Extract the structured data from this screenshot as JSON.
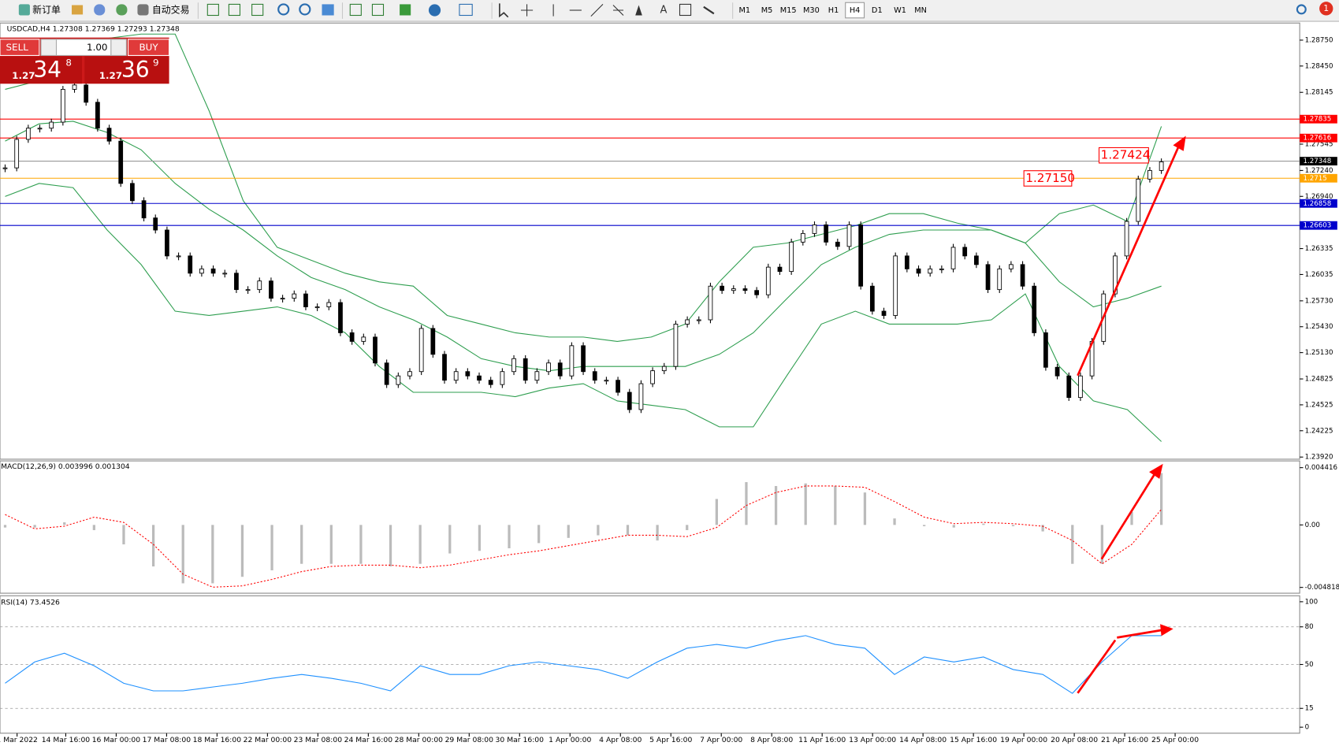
{
  "toolbar": {
    "new_order": "新订单",
    "auto_trading": "自动交易",
    "timeframes": [
      "M1",
      "M5",
      "M15",
      "M30",
      "H1",
      "H4",
      "D1",
      "W1",
      "MN"
    ]
  },
  "notifications": "1",
  "trade_panel": {
    "sell": "SELL",
    "buy": "BUY",
    "lots": "1.00",
    "bid_big": "1.27",
    "bid_pips": "34",
    "bid_point": "8",
    "ask_big": "1.27",
    "ask_pips": "36",
    "ask_point": "9"
  },
  "chart_data": [
    {
      "type": "candlestick",
      "title": "USDCAD,H4  1.27308 1.27369 1.27293 1.27348",
      "values": [
        1.2727,
        1.276,
        1.2773,
        1.2773,
        1.278,
        1.2818,
        1.2823,
        1.2803,
        1.2773,
        1.2758,
        1.2709,
        1.2689,
        1.2669,
        1.2655,
        1.2625,
        1.2625,
        1.2605,
        1.261,
        1.2605,
        1.2605,
        1.2586,
        1.2586,
        1.2596,
        1.2576,
        1.2576,
        1.2581,
        1.2566,
        1.2566,
        1.2571,
        1.2536,
        1.2526,
        1.2531,
        1.2501,
        1.2476,
        1.2486,
        1.2491,
        1.2541,
        1.2511,
        1.2481,
        1.2491,
        1.2486,
        1.2481,
        1.2476,
        1.2491,
        1.2506,
        1.2481,
        1.2491,
        1.2501,
        1.2486,
        1.2521,
        1.2491,
        1.2481,
        1.2481,
        1.2467,
        1.2447,
        1.2477,
        1.2492,
        1.2497,
        1.2546,
        1.2551,
        1.2551,
        1.259,
        1.2585,
        1.2587,
        1.2585,
        1.258,
        1.2612,
        1.2607,
        1.2641,
        1.2651,
        1.2661,
        1.2641,
        1.2636,
        1.2661,
        1.259,
        1.2561,
        1.2556,
        1.2625,
        1.261,
        1.2605,
        1.261,
        1.261,
        1.2635,
        1.2625,
        1.2615,
        1.2586,
        1.261,
        1.2615,
        1.259,
        1.2536,
        1.2496,
        1.2486,
        1.2461,
        1.2486,
        1.2526,
        1.2581,
        1.2625,
        1.2665,
        1.2714,
        1.2724,
        1.2734
      ],
      "bands": [
        {
          "color": "#2e9e4f",
          "values": [
            1.2818,
            1.2828,
            1.2852,
            1.2877,
            1.2882,
            1.2882,
            1.2793,
            1.2689,
            1.2635,
            1.262,
            1.2605,
            1.2595,
            1.259,
            1.2556,
            1.2546,
            1.2536,
            1.2531,
            1.2531,
            1.2526,
            1.2531,
            1.2546,
            1.2595,
            1.2635,
            1.264,
            1.265,
            1.266,
            1.2674,
            1.2674,
            1.2663,
            1.2655,
            1.264,
            1.2674,
            1.2684,
            1.2665,
            1.2775
          ]
        },
        {
          "color": "#2e9e4f",
          "values": [
            1.2758,
            1.2778,
            1.2781,
            1.2768,
            1.2748,
            1.2709,
            1.2679,
            1.2655,
            1.2625,
            1.26,
            1.2586,
            1.2566,
            1.2551,
            1.2531,
            1.2506,
            1.2497,
            1.2492,
            1.2497,
            1.2497,
            1.2497,
            1.2497,
            1.2511,
            1.2536,
            1.2576,
            1.2615,
            1.2635,
            1.265,
            1.2655,
            1.2655,
            1.2655,
            1.264,
            1.2595,
            1.2566,
            1.2576,
            1.259
          ]
        },
        {
          "color": "#2e9e4f",
          "values": [
            1.2694,
            1.2709,
            1.2704,
            1.2655,
            1.2615,
            1.2561,
            1.2556,
            1.2561,
            1.2566,
            1.2556,
            1.2536,
            1.2497,
            1.2467,
            1.2467,
            1.2467,
            1.2462,
            1.2472,
            1.2477,
            1.2457,
            1.2452,
            1.2447,
            1.2427,
            1.2427,
            1.2487,
            1.2546,
            1.2561,
            1.2546,
            1.2546,
            1.2546,
            1.2551,
            1.2581,
            1.2497,
            1.2457,
            1.2447,
            1.241
          ]
        }
      ],
      "levels": [
        {
          "value": 1.27835,
          "color": "#ff0000"
        },
        {
          "value": 1.27616,
          "color": "#ff0000"
        },
        {
          "value": 1.27348,
          "color": "#000000"
        },
        {
          "value": 1.2715,
          "color": "#ffa500"
        },
        {
          "value": 1.26858,
          "color": "#0000cc"
        },
        {
          "value": 1.26603,
          "color": "#0000cc"
        }
      ],
      "annotations": [
        "1.27424",
        "1.27150"
      ],
      "ylim": [
        1.23905,
        1.28938
      ],
      "yticks": [
        {
          "value": 1.2875,
          "label": "1.28750"
        },
        {
          "value": 1.2845,
          "label": "1.28450"
        },
        {
          "value": 1.28145,
          "label": "1.28145"
        },
        {
          "value": 1.27545,
          "label": "1.27545"
        },
        {
          "value": 1.2724,
          "label": "1.27240"
        },
        {
          "value": 1.2694,
          "label": "1.26940"
        },
        {
          "value": 1.26335,
          "label": "1.26335"
        },
        {
          "value": 1.26035,
          "label": "1.26035"
        },
        {
          "value": 1.2573,
          "label": "1.25730"
        },
        {
          "value": 1.2543,
          "label": "1.25430"
        },
        {
          "value": 1.2513,
          "label": "1.25130"
        },
        {
          "value": 1.24825,
          "label": "1.24825"
        },
        {
          "value": 1.24525,
          "label": "1.24525"
        },
        {
          "value": 1.24225,
          "label": "1.24225"
        },
        {
          "value": 1.2392,
          "label": "1.23920"
        }
      ],
      "x_labels": [
        "1 Mar 2022",
        "14 Mar 16:00",
        "16 Mar 00:00",
        "17 Mar 08:00",
        "18 Mar 16:00",
        "22 Mar 00:00",
        "23 Mar 08:00",
        "24 Mar 16:00",
        "28 Mar 00:00",
        "29 Mar 08:00",
        "30 Mar 16:00",
        "1 Apr 00:00",
        "4 Apr 08:00",
        "5 Apr 16:00",
        "7 Apr 00:00",
        "8 Apr 08:00",
        "11 Apr 16:00",
        "13 Apr 00:00",
        "14 Apr 08:00",
        "15 Apr 16:00",
        "19 Apr 00:00",
        "20 Apr 08:00",
        "21 Apr 16:00",
        "25 Apr 00:00"
      ]
    },
    {
      "type": "macd",
      "title": "MACD(12,26,9) 0.003996 0.001304",
      "series": [
        {
          "color": "#bbbbbb",
          "values": [
            -0.0002,
            -0.0002,
            0.0002,
            -0.0004,
            -0.0015,
            -0.0032,
            -0.0045,
            -0.0045,
            -0.004,
            -0.0035,
            -0.003,
            -0.003,
            -0.003,
            -0.0032,
            -0.003,
            -0.0022,
            -0.002,
            -0.0018,
            -0.0014,
            -0.001,
            -0.0008,
            -0.0008,
            -0.0012,
            -0.0004,
            0.002,
            0.0033,
            0.003,
            0.0032,
            0.003,
            0.0025,
            0.0005,
            -0.0001,
            -0.0002,
            0.0001,
            -0.0001,
            -0.0005,
            -0.003,
            -0.003,
            0.001,
            0.004
          ]
        },
        {
          "color": "#ff0000",
          "values": [
            0.0008,
            -0.0003,
            -0.0001,
            0.0006,
            0.0002,
            -0.0015,
            -0.0038,
            -0.0048,
            -0.0047,
            -0.0042,
            -0.0036,
            -0.0032,
            -0.0031,
            -0.0031,
            -0.0033,
            -0.0031,
            -0.0027,
            -0.0023,
            -0.002,
            -0.0016,
            -0.0012,
            -0.0008,
            -0.0008,
            -0.0009,
            -0.0002,
            0.0015,
            0.0025,
            0.003,
            0.003,
            0.0029,
            0.0018,
            0.0006,
            0.0001,
            0.0002,
            0.0001,
            -0.0001,
            -0.0012,
            -0.003,
            -0.0015,
            0.0012
          ]
        }
      ],
      "ylim": [
        -0.0052,
        0.00487
      ],
      "yticks": [
        0.004416,
        {
          "value": 0,
          "label": "0.00"
        },
        -0.004818
      ]
    },
    {
      "type": "line",
      "title": "RSI(14) 73.4526",
      "series": [
        {
          "color": "#1e90ff",
          "values": [
            35,
            52,
            59,
            49,
            35,
            29,
            29,
            32,
            35,
            39,
            42,
            39,
            35,
            29,
            49,
            42,
            42,
            49,
            52,
            49,
            46,
            39,
            52,
            63,
            66,
            63,
            69,
            73,
            66,
            63,
            42,
            56,
            52,
            56,
            46,
            42,
            27,
            52,
            73,
            73
          ]
        }
      ],
      "ylim": [
        -4.1,
        103.4
      ],
      "yticks": [
        100,
        80,
        50,
        15,
        0
      ],
      "grid": true
    }
  ]
}
